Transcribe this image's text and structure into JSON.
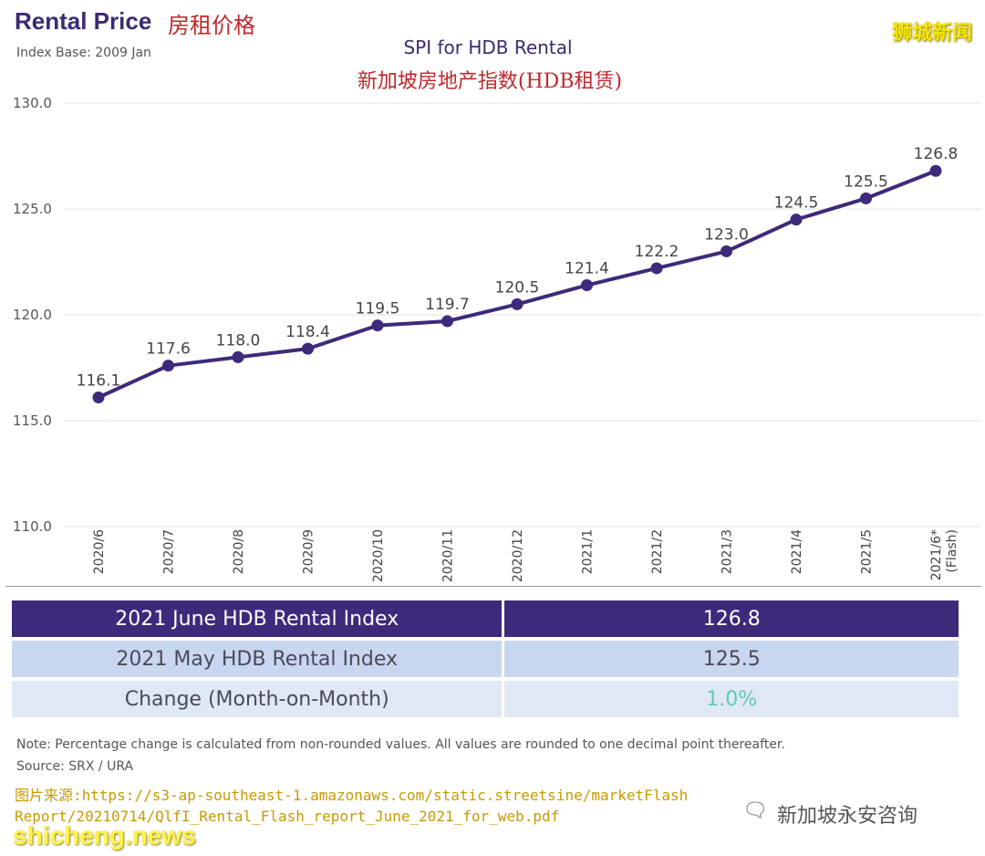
{
  "header": {
    "title": "Rental Price",
    "title_cn": "房租价格",
    "index_base": "Index Base: 2009 Jan",
    "watermark": "狮城新闻"
  },
  "chart_data": {
    "type": "line",
    "title": "SPI for HDB Rental",
    "subtitle": "新加坡房地产指数(HDB租赁)",
    "categories": [
      "2020/6",
      "2020/7",
      "2020/8",
      "2020/9",
      "2020/10",
      "2020/11",
      "2020/12",
      "2021/1",
      "2021/2",
      "2021/3",
      "2021/4",
      "2021/5",
      "2021/6*"
    ],
    "category_note": "(Flash)",
    "values": [
      116.1,
      117.6,
      118.0,
      118.4,
      119.5,
      119.7,
      120.5,
      121.4,
      122.2,
      123.0,
      124.5,
      125.5,
      126.8
    ],
    "value_labels": [
      "116.1",
      "117.6",
      "118.0",
      "118.4",
      "119.5",
      "119.7",
      "120.5",
      "121.4",
      "122.2",
      "123.0",
      "124.5",
      "125.5",
      "126.8"
    ],
    "yticks": [
      "130.0",
      "125.0",
      "120.0",
      "115.0",
      "110.0"
    ],
    "ylim": [
      110,
      130
    ],
    "grid": true,
    "line_color": "#3d2a7a"
  },
  "summary_table": {
    "rows": [
      {
        "label": "2021 June HDB Rental Index",
        "value": "126.8"
      },
      {
        "label": "2021 May HDB Rental Index",
        "value": "125.5"
      },
      {
        "label": "Change (Month-on-Month)",
        "value": "1.0%"
      }
    ],
    "change_color": "#5fc9b4"
  },
  "footer": {
    "note": "Note: Percentage change is calculated from non-rounded values.  All values are rounded to one decimal point thereafter.",
    "source": "Source: SRX / URA",
    "image_source_line1": "图片来源:https://s3-ap-southeast-1.amazonaws.com/static.streetsine/marketFlash",
    "image_source_line2": "Report/20210714/QlfI_Rental_Flash_report_June_2021_for_web.pdf",
    "wechat_icon": "wechat-icon",
    "wechat_name": "新加坡永安咨询",
    "site_watermark": "shicheng.news"
  }
}
